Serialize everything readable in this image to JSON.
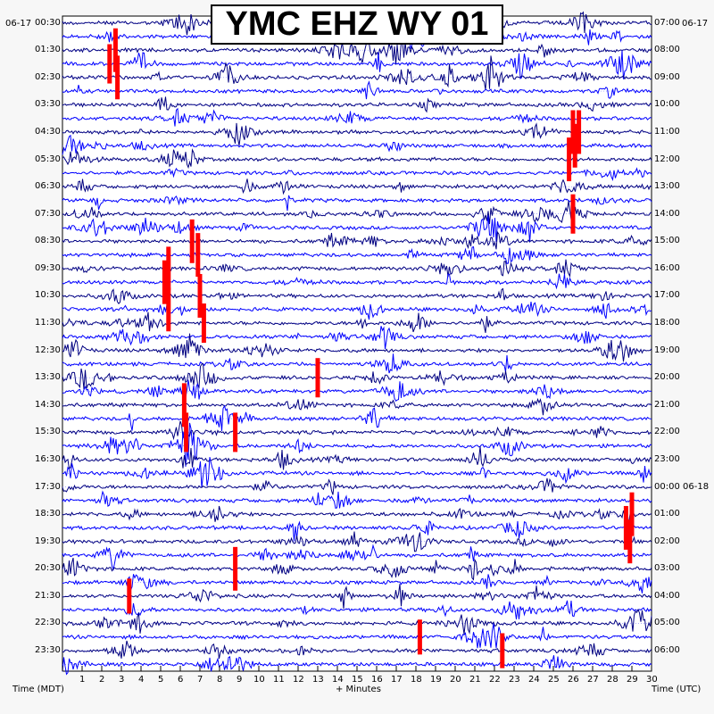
{
  "title": "YMC EHZ WY 01",
  "chart_data": {
    "type": "helicorder",
    "title": "YMC EHZ WY 01",
    "xlabel": "+ Minutes",
    "left_axis_title": "Time (MDT)",
    "right_axis_title": "Time (UTC)",
    "left_date": "06-17",
    "right_date": "06-17",
    "x_ticks": [
      "1",
      "2",
      "3",
      "4",
      "5",
      "6",
      "7",
      "8",
      "9",
      "10",
      "11",
      "12",
      "13",
      "14",
      "15",
      "16",
      "17",
      "18",
      "19",
      "20",
      "21",
      "22",
      "23",
      "24",
      "25",
      "26",
      "27",
      "28",
      "29",
      "30"
    ],
    "xlim": [
      0,
      30
    ],
    "left_labels": [
      "00:30",
      "01:30",
      "02:30",
      "03:30",
      "04:30",
      "05:30",
      "06:30",
      "07:30",
      "08:30",
      "09:30",
      "10:30",
      "11:30",
      "12:30",
      "13:30",
      "14:30",
      "15:30",
      "16:30",
      "17:30",
      "18:30",
      "19:30",
      "20:30",
      "21:30",
      "22:30",
      "23:30"
    ],
    "right_labels": [
      "07:00",
      "08:00",
      "09:00",
      "10:00",
      "11:00",
      "12:00",
      "13:00",
      "14:00",
      "15:00",
      "16:00",
      "17:00",
      "18:00",
      "19:00",
      "20:00",
      "21:00",
      "22:00",
      "23:00",
      "00:00 06-18",
      "01:00",
      "02:00",
      "03:00",
      "04:00",
      "05:00",
      "06:00"
    ],
    "rows_per_hour": 2,
    "minutes_per_row": 30,
    "trace_colors": [
      "#000080",
      "#0000ff"
    ],
    "clip_color": "#ff0000",
    "grid": true,
    "events": [
      {
        "row": 2,
        "minute": 2.7,
        "amp": 1.0
      },
      {
        "row": 3,
        "minute": 2.4,
        "amp": 0.9
      },
      {
        "row": 4,
        "minute": 2.8,
        "amp": 1.0
      },
      {
        "row": 8,
        "minute": 26.0,
        "amp": 1.0
      },
      {
        "row": 8,
        "minute": 26.3,
        "amp": 1.0
      },
      {
        "row": 9,
        "minute": 26.1,
        "amp": 1.0
      },
      {
        "row": 10,
        "minute": 25.8,
        "amp": 1.0
      },
      {
        "row": 14,
        "minute": 26.0,
        "amp": 0.9
      },
      {
        "row": 16,
        "minute": 6.6,
        "amp": 1.0
      },
      {
        "row": 17,
        "minute": 6.9,
        "amp": 1.0
      },
      {
        "row": 18,
        "minute": 5.4,
        "amp": 1.0
      },
      {
        "row": 19,
        "minute": 5.2,
        "amp": 1.0
      },
      {
        "row": 20,
        "minute": 7.0,
        "amp": 1.0
      },
      {
        "row": 21,
        "minute": 5.4,
        "amp": 1.0
      },
      {
        "row": 22,
        "minute": 7.2,
        "amp": 0.9
      },
      {
        "row": 26,
        "minute": 13.0,
        "amp": 0.9
      },
      {
        "row": 28,
        "minute": 6.2,
        "amp": 1.0
      },
      {
        "row": 30,
        "minute": 8.8,
        "amp": 0.9
      },
      {
        "row": 30,
        "minute": 6.3,
        "amp": 0.9
      },
      {
        "row": 36,
        "minute": 29.0,
        "amp": 1.0
      },
      {
        "row": 37,
        "minute": 28.7,
        "amp": 1.0
      },
      {
        "row": 38,
        "minute": 28.9,
        "amp": 1.0
      },
      {
        "row": 40,
        "minute": 8.8,
        "amp": 1.0
      },
      {
        "row": 42,
        "minute": 3.4,
        "amp": 0.8
      },
      {
        "row": 45,
        "minute": 18.2,
        "amp": 0.8
      },
      {
        "row": 46,
        "minute": 22.4,
        "amp": 0.8
      }
    ]
  }
}
